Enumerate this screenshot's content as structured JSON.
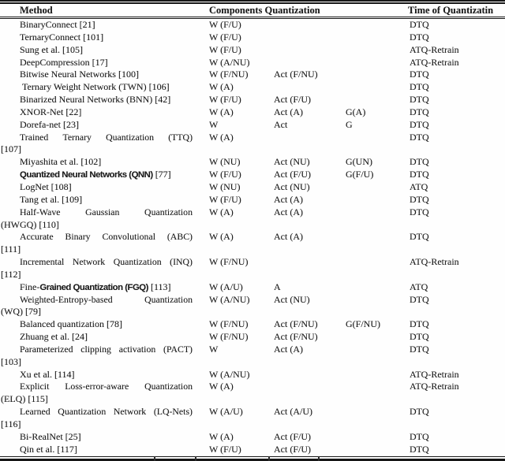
{
  "header": {
    "method": "Method",
    "components": "Components Quantization",
    "time": "Time of Quantizatin"
  },
  "rows": [
    {
      "name": [
        [
          "BinaryConnect [21]",
          "n"
        ]
      ],
      "name2": null,
      "w": "W (F/U)",
      "act": "",
      "g": "",
      "time": "DTQ"
    },
    {
      "name": [
        [
          "TernaryConnect [101]",
          "n"
        ]
      ],
      "name2": null,
      "w": "W (F/U)",
      "act": "",
      "g": "",
      "time": "DTQ"
    },
    {
      "name": [
        [
          "Sung et al. [105]",
          "n"
        ]
      ],
      "name2": null,
      "w": "W (F/U)",
      "act": "",
      "g": "",
      "time": "ATQ-Retrain"
    },
    {
      "name": [
        [
          "DeepCompression [17]",
          "n"
        ]
      ],
      "name2": null,
      "w": "W (A/NU)",
      "act": "",
      "g": "",
      "time": "ATQ-Retrain"
    },
    {
      "name": [
        [
          "Bitwise Neural Networks [100]",
          "n"
        ]
      ],
      "name2": null,
      "w": "W (F/NU)",
      "act": "Act (F/NU)",
      "g": "",
      "time": "DTQ"
    },
    {
      "name": [
        [
          " Ternary Weight Network (TWN) [106]",
          "n"
        ]
      ],
      "name2": null,
      "w": "W (A)",
      "act": "",
      "g": "",
      "time": "DTQ"
    },
    {
      "name": [
        [
          "Binarized Neural Networks (BNN) [42]",
          "n"
        ]
      ],
      "name2": null,
      "w": "W (F/U)",
      "act": "Act (F/U)",
      "g": "",
      "time": "DTQ"
    },
    {
      "name": [
        [
          "XNOR-Net [22]",
          "n"
        ]
      ],
      "name2": null,
      "w": "W (A)",
      "act": "Act (A)",
      "g": "G(A)",
      "time": "DTQ"
    },
    {
      "name": [
        [
          "Dorefa-net [23]",
          "n"
        ]
      ],
      "name2": null,
      "w": "W",
      "act": "Act",
      "g": "G",
      "time": "DTQ"
    },
    {
      "name": [
        [
          "Trained Ternary Quantization (TTQ)",
          "n"
        ]
      ],
      "name2": "[107]",
      "w": "W (A)",
      "act": "",
      "g": "",
      "time": "DTQ"
    },
    {
      "name": [
        [
          "Miyashita et al. [102]",
          "n"
        ]
      ],
      "name2": null,
      "w": "W (NU)",
      "act": "Act (NU)",
      "g": "G(UN)",
      "time": "DTQ"
    },
    {
      "name": [
        [
          "Quantized Neural Networks (QNN)",
          "b"
        ],
        [
          " [77]",
          "n"
        ]
      ],
      "name2": null,
      "w": "W (F/U)",
      "act": "Act (F/U)",
      "g": "G(F/U)",
      "time": "DTQ"
    },
    {
      "name": [
        [
          "LogNet [108]",
          "n"
        ]
      ],
      "name2": null,
      "w": "W (NU)",
      "act": "Act (NU)",
      "g": "",
      "time": "ATQ"
    },
    {
      "name": [
        [
          "Tang et al. [109]",
          "n"
        ]
      ],
      "name2": null,
      "w": "W (F/U)",
      "act": "Act (A)",
      "g": "",
      "time": "DTQ"
    },
    {
      "name": [
        [
          "Half-Wave Gaussian Quantization",
          "n"
        ]
      ],
      "name2": "(HWGQ) [110]",
      "w": "W (A)",
      "act": "Act (A)",
      "g": "",
      "time": "DTQ"
    },
    {
      "name": [
        [
          "Accurate Binary Convolutional (ABC)",
          "n"
        ]
      ],
      "name2": "[111]",
      "w": "W (A)",
      "act": "Act (A)",
      "g": "",
      "time": "DTQ"
    },
    {
      "name": [
        [
          "Incremental Network Quantization (INQ)",
          "n"
        ]
      ],
      "name2": "[112]",
      "w": "W (F/NU)",
      "act": "",
      "g": "",
      "time": "ATQ-Retrain"
    },
    {
      "name": [
        [
          "Fine-",
          "n"
        ],
        [
          "Grained Quantization (FGQ)",
          "b"
        ],
        [
          " [113]",
          "n"
        ]
      ],
      "name2": null,
      "w": "W (A/U)",
      "act": "A",
      "g": "",
      "time": "ATQ"
    },
    {
      "name": [
        [
          "Weighted-Entropy-based Quantization",
          "n"
        ]
      ],
      "name2": "(WQ) [79]",
      "w": "W (A/NU)",
      "act": "Act (NU)",
      "g": "",
      "time": "DTQ"
    },
    {
      "name": [
        [
          "Balanced quantization [78]",
          "n"
        ]
      ],
      "name2": null,
      "w": "W (F/NU)",
      "act": "Act (F/NU)",
      "g": "G(F/NU)",
      "time": "DTQ"
    },
    {
      "name": [
        [
          "Zhuang et al. [24]",
          "n"
        ]
      ],
      "name2": null,
      "w": "W (F/NU)",
      "act": "Act (F/NU)",
      "g": "",
      "time": "DTQ"
    },
    {
      "name": [
        [
          "Parameterized clipping activation (PACT)",
          "n"
        ]
      ],
      "name2": "[103]",
      "w": "W",
      "act": "Act (A)",
      "g": "",
      "time": "DTQ"
    },
    {
      "name": [
        [
          "Xu et al. [114]",
          "n"
        ]
      ],
      "name2": null,
      "w": "W (A/NU)",
      "act": "",
      "g": "",
      "time": "ATQ-Retrain"
    },
    {
      "name": [
        [
          "Explicit Loss-error-aware Quantization",
          "n"
        ]
      ],
      "name2": "(ELQ) [115]",
      "w": "W (A)",
      "act": "",
      "g": "",
      "time": "ATQ-Retrain"
    },
    {
      "name": [
        [
          "Learned Quantization Network (LQ-Nets)",
          "n"
        ]
      ],
      "name2": "[116]",
      "w": "W (A/U)",
      "act": "Act (A/U)",
      "g": "",
      "time": "DTQ"
    },
    {
      "name": [
        [
          "Bi-RealNet [25]",
          "n"
        ]
      ],
      "name2": null,
      "w": "W (A)",
      "act": "Act (F/U)",
      "g": "",
      "time": "DTQ"
    },
    {
      "name": [
        [
          "Qin et al. [117]",
          "n"
        ]
      ],
      "name2": null,
      "w": "W (F/U)",
      "act": "Act (F/U)",
      "g": "",
      "time": "DTQ"
    }
  ]
}
